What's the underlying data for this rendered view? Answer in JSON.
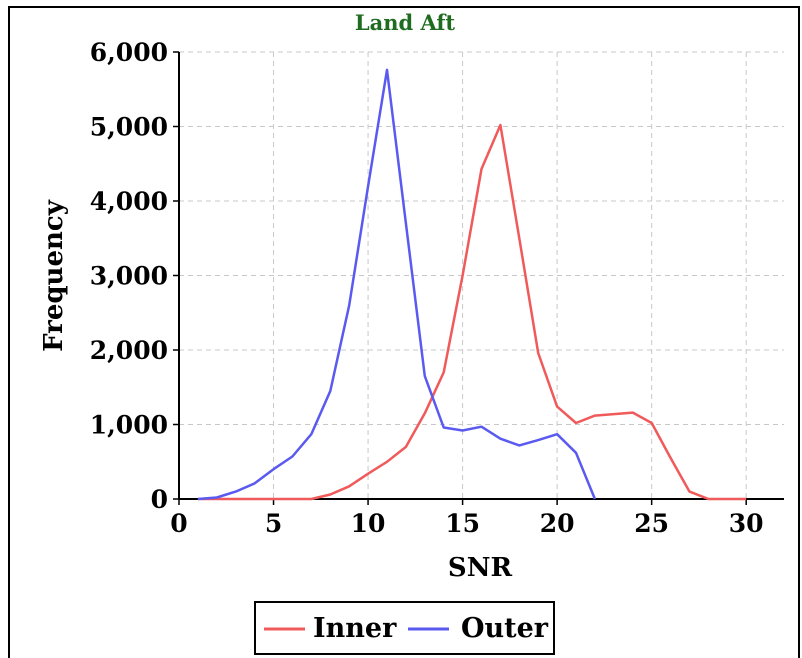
{
  "chart_data": {
    "type": "line",
    "title": "Land Aft",
    "xlabel": "SNR",
    "ylabel": "Frequency",
    "xlim": [
      0,
      32
    ],
    "ylim": [
      0,
      6000
    ],
    "xticks": [
      0,
      5,
      10,
      15,
      20,
      25,
      30
    ],
    "yticks": [
      0,
      1000,
      2000,
      3000,
      4000,
      5000,
      6000
    ],
    "xtick_labels": [
      "0",
      "5",
      "10",
      "15",
      "20",
      "25",
      "30"
    ],
    "ytick_labels": [
      "0",
      "1,000",
      "2,000",
      "3,000",
      "4,000",
      "5,000",
      "6,000"
    ],
    "grid": true,
    "legend_position": "bottom-center",
    "title_color": "#1f6b1f",
    "series": [
      {
        "name": "Inner",
        "color": "#f05a5a",
        "x": [
          1,
          2,
          3,
          4,
          5,
          6,
          7,
          8,
          9,
          10,
          11,
          12,
          13,
          14,
          15,
          16,
          17,
          18,
          19,
          20,
          21,
          22,
          23,
          24,
          25,
          26,
          27,
          28,
          29,
          30
        ],
        "y": [
          0,
          0,
          0,
          0,
          0,
          0,
          0,
          60,
          170,
          340,
          500,
          700,
          1150,
          1700,
          3000,
          4430,
          5020,
          3500,
          1960,
          1240,
          1020,
          1120,
          1140,
          1160,
          1020,
          550,
          100,
          0,
          0,
          0
        ]
      },
      {
        "name": "Outer",
        "color": "#5a5af0",
        "x": [
          1,
          2,
          3,
          4,
          5,
          6,
          7,
          8,
          9,
          10,
          11,
          12,
          13,
          14,
          15,
          16,
          17,
          18,
          19,
          20,
          21,
          22
        ],
        "y": [
          0,
          20,
          100,
          210,
          400,
          570,
          870,
          1450,
          2600,
          4200,
          5760,
          3700,
          1650,
          960,
          920,
          970,
          810,
          720,
          790,
          870,
          620,
          0
        ]
      }
    ]
  }
}
